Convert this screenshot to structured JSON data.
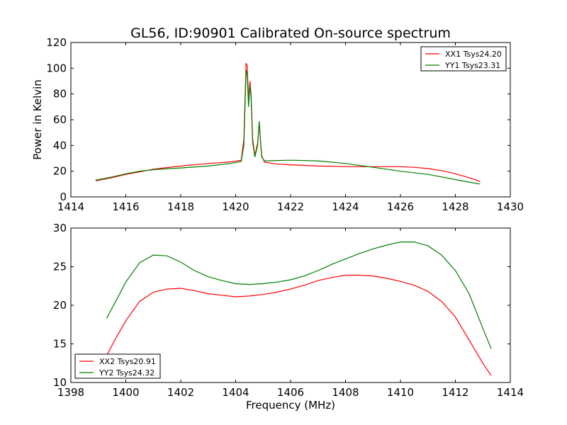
{
  "chart_data": [
    {
      "type": "line",
      "title": "GL56, ID:90901 Calibrated On-source spectrum",
      "xlabel": "",
      "ylabel": "Power in Kelvin",
      "xlim": [
        1414,
        1430
      ],
      "ylim": [
        0,
        120
      ],
      "xticks": [
        1414,
        1416,
        1418,
        1420,
        1422,
        1424,
        1426,
        1428,
        1430
      ],
      "yticks": [
        0,
        20,
        40,
        60,
        80,
        100,
        120
      ],
      "grid": false,
      "legend_position": "top-right",
      "series": [
        {
          "name": "XX1 Tsys24.20",
          "color": "#ff0000",
          "points": [
            [
              1414.9,
              12.5
            ],
            [
              1415.5,
              15.0
            ],
            [
              1416.0,
              17.5
            ],
            [
              1416.5,
              19.5
            ],
            [
              1417.0,
              21.5
            ],
            [
              1418.0,
              24.0
            ],
            [
              1419.0,
              26.0
            ],
            [
              1419.8,
              27.2
            ],
            [
              1420.2,
              28.5
            ],
            [
              1420.3,
              45.0
            ],
            [
              1420.38,
              104.0
            ],
            [
              1420.42,
              102.0
            ],
            [
              1420.47,
              75.0
            ],
            [
              1420.52,
              90.0
            ],
            [
              1420.56,
              80.0
            ],
            [
              1420.62,
              45.0
            ],
            [
              1420.7,
              32.0
            ],
            [
              1420.8,
              42.0
            ],
            [
              1420.86,
              57.0
            ],
            [
              1420.9,
              45.0
            ],
            [
              1420.95,
              32.0
            ],
            [
              1421.05,
              27.0
            ],
            [
              1421.5,
              25.5
            ],
            [
              1422.0,
              25.0
            ],
            [
              1423.0,
              24.0
            ],
            [
              1424.0,
              23.5
            ],
            [
              1425.0,
              23.5
            ],
            [
              1426.0,
              23.5
            ],
            [
              1426.5,
              23.0
            ],
            [
              1427.0,
              22.0
            ],
            [
              1427.5,
              20.5
            ],
            [
              1428.0,
              18.0
            ],
            [
              1428.5,
              15.0
            ],
            [
              1428.9,
              12.0
            ]
          ]
        },
        {
          "name": "YY1 Tsys23.31",
          "color": "#007f00",
          "points": [
            [
              1414.9,
              13.0
            ],
            [
              1415.5,
              15.5
            ],
            [
              1416.0,
              18.0
            ],
            [
              1416.5,
              20.0
            ],
            [
              1417.0,
              21.2
            ],
            [
              1418.0,
              22.5
            ],
            [
              1419.0,
              24.0
            ],
            [
              1419.8,
              26.0
            ],
            [
              1420.2,
              27.5
            ],
            [
              1420.3,
              40.0
            ],
            [
              1420.38,
              99.0
            ],
            [
              1420.42,
              95.0
            ],
            [
              1420.47,
              70.0
            ],
            [
              1420.52,
              87.0
            ],
            [
              1420.56,
              78.0
            ],
            [
              1420.62,
              42.0
            ],
            [
              1420.7,
              31.0
            ],
            [
              1420.8,
              40.0
            ],
            [
              1420.86,
              59.0
            ],
            [
              1420.9,
              44.0
            ],
            [
              1420.95,
              31.0
            ],
            [
              1421.05,
              28.0
            ],
            [
              1421.5,
              28.3
            ],
            [
              1422.0,
              28.5
            ],
            [
              1423.0,
              28.0
            ],
            [
              1424.0,
              26.0
            ],
            [
              1425.0,
              23.0
            ],
            [
              1426.0,
              20.0
            ],
            [
              1427.0,
              17.5
            ],
            [
              1428.0,
              13.5
            ],
            [
              1428.5,
              11.5
            ],
            [
              1428.9,
              10.0
            ]
          ]
        }
      ]
    },
    {
      "type": "line",
      "title": "",
      "xlabel": "Frequency (MHz)",
      "ylabel": "",
      "xlim": [
        1398,
        1414
      ],
      "ylim": [
        10,
        30
      ],
      "xticks": [
        1398,
        1400,
        1402,
        1404,
        1406,
        1408,
        1410,
        1412,
        1414
      ],
      "yticks": [
        10,
        15,
        20,
        25,
        30
      ],
      "grid": false,
      "legend_position": "bottom-left",
      "series": [
        {
          "name": "XX2 Tsys20.91",
          "color": "#ff0000",
          "points": [
            [
              1399.3,
              13.5
            ],
            [
              1399.6,
              15.5
            ],
            [
              1400.0,
              18.0
            ],
            [
              1400.5,
              20.5
            ],
            [
              1401.0,
              21.7
            ],
            [
              1401.5,
              22.1
            ],
            [
              1402.0,
              22.2
            ],
            [
              1402.5,
              21.9
            ],
            [
              1403.0,
              21.5
            ],
            [
              1403.5,
              21.3
            ],
            [
              1404.0,
              21.1
            ],
            [
              1404.5,
              21.2
            ],
            [
              1405.0,
              21.4
            ],
            [
              1405.5,
              21.7
            ],
            [
              1406.0,
              22.1
            ],
            [
              1406.5,
              22.6
            ],
            [
              1407.0,
              23.2
            ],
            [
              1407.5,
              23.6
            ],
            [
              1408.0,
              23.9
            ],
            [
              1408.5,
              23.9
            ],
            [
              1409.0,
              23.8
            ],
            [
              1409.5,
              23.5
            ],
            [
              1410.0,
              23.1
            ],
            [
              1410.5,
              22.6
            ],
            [
              1411.0,
              21.8
            ],
            [
              1411.5,
              20.5
            ],
            [
              1412.0,
              18.5
            ],
            [
              1412.5,
              15.5
            ],
            [
              1413.0,
              12.5
            ],
            [
              1413.3,
              10.9
            ]
          ]
        },
        {
          "name": "YY2 Tsys24.32",
          "color": "#007f00",
          "points": [
            [
              1399.3,
              18.3
            ],
            [
              1399.6,
              20.3
            ],
            [
              1400.0,
              23.0
            ],
            [
              1400.5,
              25.5
            ],
            [
              1401.0,
              26.5
            ],
            [
              1401.5,
              26.4
            ],
            [
              1402.0,
              25.6
            ],
            [
              1402.5,
              24.5
            ],
            [
              1403.0,
              23.7
            ],
            [
              1403.5,
              23.2
            ],
            [
              1404.0,
              22.8
            ],
            [
              1404.5,
              22.7
            ],
            [
              1405.0,
              22.8
            ],
            [
              1405.5,
              23.0
            ],
            [
              1406.0,
              23.3
            ],
            [
              1406.5,
              23.8
            ],
            [
              1407.0,
              24.5
            ],
            [
              1407.5,
              25.3
            ],
            [
              1408.0,
              26.0
            ],
            [
              1408.5,
              26.7
            ],
            [
              1409.0,
              27.3
            ],
            [
              1409.5,
              27.8
            ],
            [
              1410.0,
              28.2
            ],
            [
              1410.5,
              28.2
            ],
            [
              1411.0,
              27.7
            ],
            [
              1411.5,
              26.5
            ],
            [
              1412.0,
              24.5
            ],
            [
              1412.5,
              21.5
            ],
            [
              1413.0,
              17.0
            ],
            [
              1413.3,
              14.4
            ]
          ]
        }
      ]
    }
  ]
}
